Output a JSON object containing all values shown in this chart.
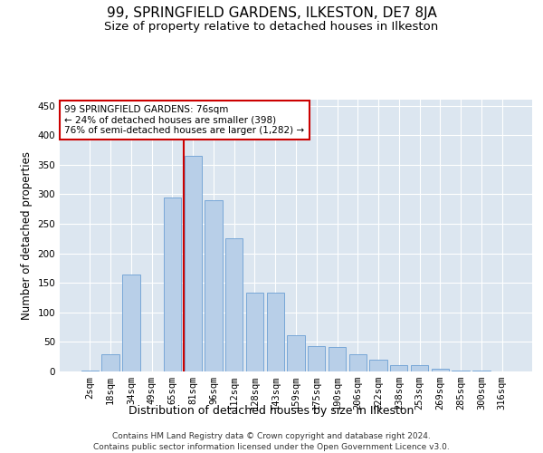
{
  "title": "99, SPRINGFIELD GARDENS, ILKESTON, DE7 8JA",
  "subtitle": "Size of property relative to detached houses in Ilkeston",
  "xlabel": "Distribution of detached houses by size in Ilkeston",
  "ylabel": "Number of detached properties",
  "categories": [
    "2sqm",
    "18sqm",
    "34sqm",
    "49sqm",
    "65sqm",
    "81sqm",
    "96sqm",
    "112sqm",
    "128sqm",
    "143sqm",
    "159sqm",
    "175sqm",
    "190sqm",
    "206sqm",
    "222sqm",
    "238sqm",
    "253sqm",
    "269sqm",
    "285sqm",
    "300sqm",
    "316sqm"
  ],
  "values": [
    1,
    29,
    164,
    0,
    295,
    365,
    290,
    225,
    133,
    133,
    62,
    43,
    42,
    29,
    20,
    10,
    11,
    5,
    2,
    1,
    0
  ],
  "bar_color": "#b8cfe8",
  "bar_edge_color": "#6b9fd4",
  "vline_x": 4.55,
  "vline_color": "#cc0000",
  "annotation_text": "99 SPRINGFIELD GARDENS: 76sqm\n← 24% of detached houses are smaller (398)\n76% of semi-detached houses are larger (1,282) →",
  "annotation_box_color": "#ffffff",
  "annotation_box_edge": "#cc0000",
  "ylim": [
    0,
    460
  ],
  "yticks": [
    0,
    50,
    100,
    150,
    200,
    250,
    300,
    350,
    400,
    450
  ],
  "bg_color": "#dce6f0",
  "footer1": "Contains HM Land Registry data © Crown copyright and database right 2024.",
  "footer2": "Contains public sector information licensed under the Open Government Licence v3.0.",
  "title_fontsize": 11,
  "subtitle_fontsize": 9.5,
  "xlabel_fontsize": 9,
  "ylabel_fontsize": 8.5,
  "tick_fontsize": 7.5,
  "footer_fontsize": 6.5,
  "annot_fontsize": 7.5
}
